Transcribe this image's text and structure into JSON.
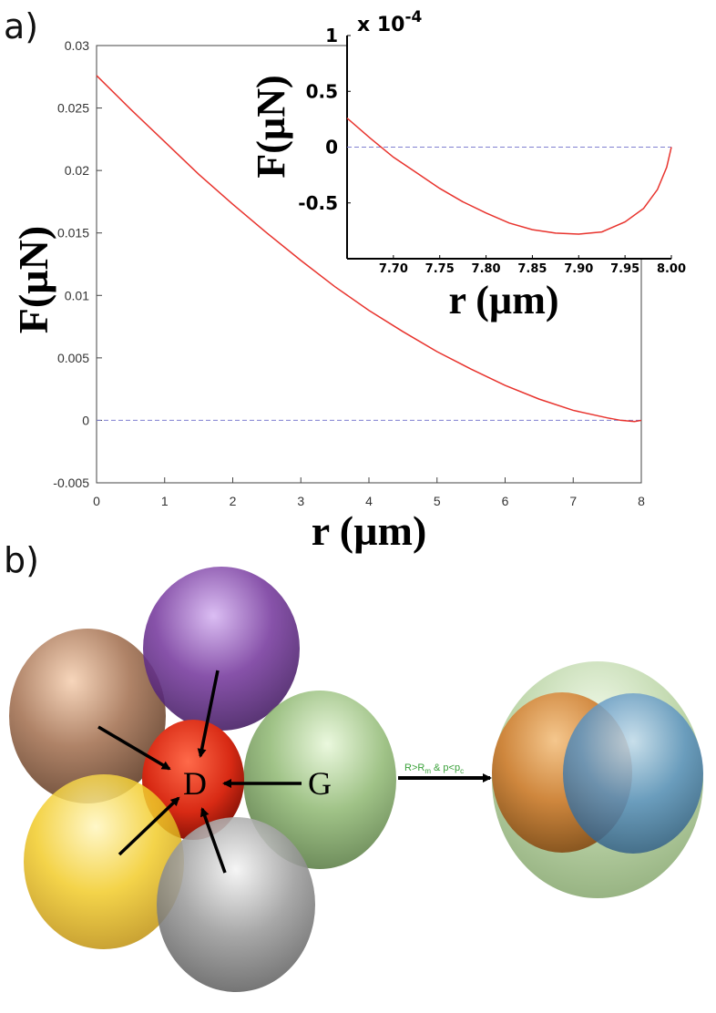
{
  "panel_a_label": "a)",
  "panel_b_label": "b)",
  "chart_data": [
    {
      "type": "line",
      "xlabel": "r (µm)",
      "ylabel": "F(µN)",
      "xlim": [
        0,
        8
      ],
      "ylim": [
        -0.005,
        0.03
      ],
      "xticks": [
        "0",
        "1",
        "2",
        "3",
        "4",
        "5",
        "6",
        "7",
        "8"
      ],
      "yticks": [
        "-0.005",
        "0",
        "0.005",
        "0.01",
        "0.015",
        "0.02",
        "0.025",
        "0.03"
      ],
      "x": [
        0,
        0.5,
        1,
        1.5,
        2,
        2.5,
        3,
        3.5,
        4,
        4.5,
        5,
        5.5,
        6,
        6.5,
        7,
        7.5,
        7.7,
        7.9,
        8.0
      ],
      "y": [
        0.0276,
        0.0249,
        0.0223,
        0.0197,
        0.0173,
        0.015,
        0.0128,
        0.0107,
        0.0088,
        0.0071,
        0.0055,
        0.0041,
        0.0028,
        0.0017,
        0.0008,
        0.0002,
        0.0,
        -0.0001,
        0.0
      ],
      "zero_line": true,
      "color": "#e8332d"
    },
    {
      "type": "line",
      "inset": true,
      "xlabel": "r (µm)",
      "ylabel": "F(µN)",
      "scale_label": "x 10",
      "scale_exponent": "-4",
      "xlim": [
        7.65,
        8.0
      ],
      "ylim": [
        -1.0,
        1.0
      ],
      "xticks": [
        "7.70",
        "7.75",
        "7.80",
        "7.85",
        "7.90",
        "7.95",
        "8.00"
      ],
      "yticks": [
        "-0.5",
        "0",
        "0.5",
        "1"
      ],
      "x": [
        7.65,
        7.675,
        7.7,
        7.725,
        7.75,
        7.775,
        7.8,
        7.825,
        7.85,
        7.875,
        7.9,
        7.925,
        7.95,
        7.97,
        7.985,
        7.995,
        8.0
      ],
      "y": [
        0.26,
        0.08,
        -0.09,
        -0.23,
        -0.37,
        -0.49,
        -0.59,
        -0.68,
        -0.74,
        -0.77,
        -0.78,
        -0.76,
        -0.67,
        -0.55,
        -0.38,
        -0.18,
        0.0
      ],
      "zero_line": true,
      "color": "#e8332d"
    }
  ],
  "diagram_b": {
    "center_label": "D",
    "green_label": "G",
    "condition_text": "R>Rm & p<pc",
    "colors": {
      "brown": "#a8785a",
      "purple": "#7a3fa0",
      "green": "#8fb872",
      "yellow": "#f2cc2a",
      "gray": "#9c9c9c",
      "red": "#d82a14",
      "outer_green": "#a9c98f",
      "orange": "#d08338",
      "blue": "#5c93c0"
    }
  }
}
